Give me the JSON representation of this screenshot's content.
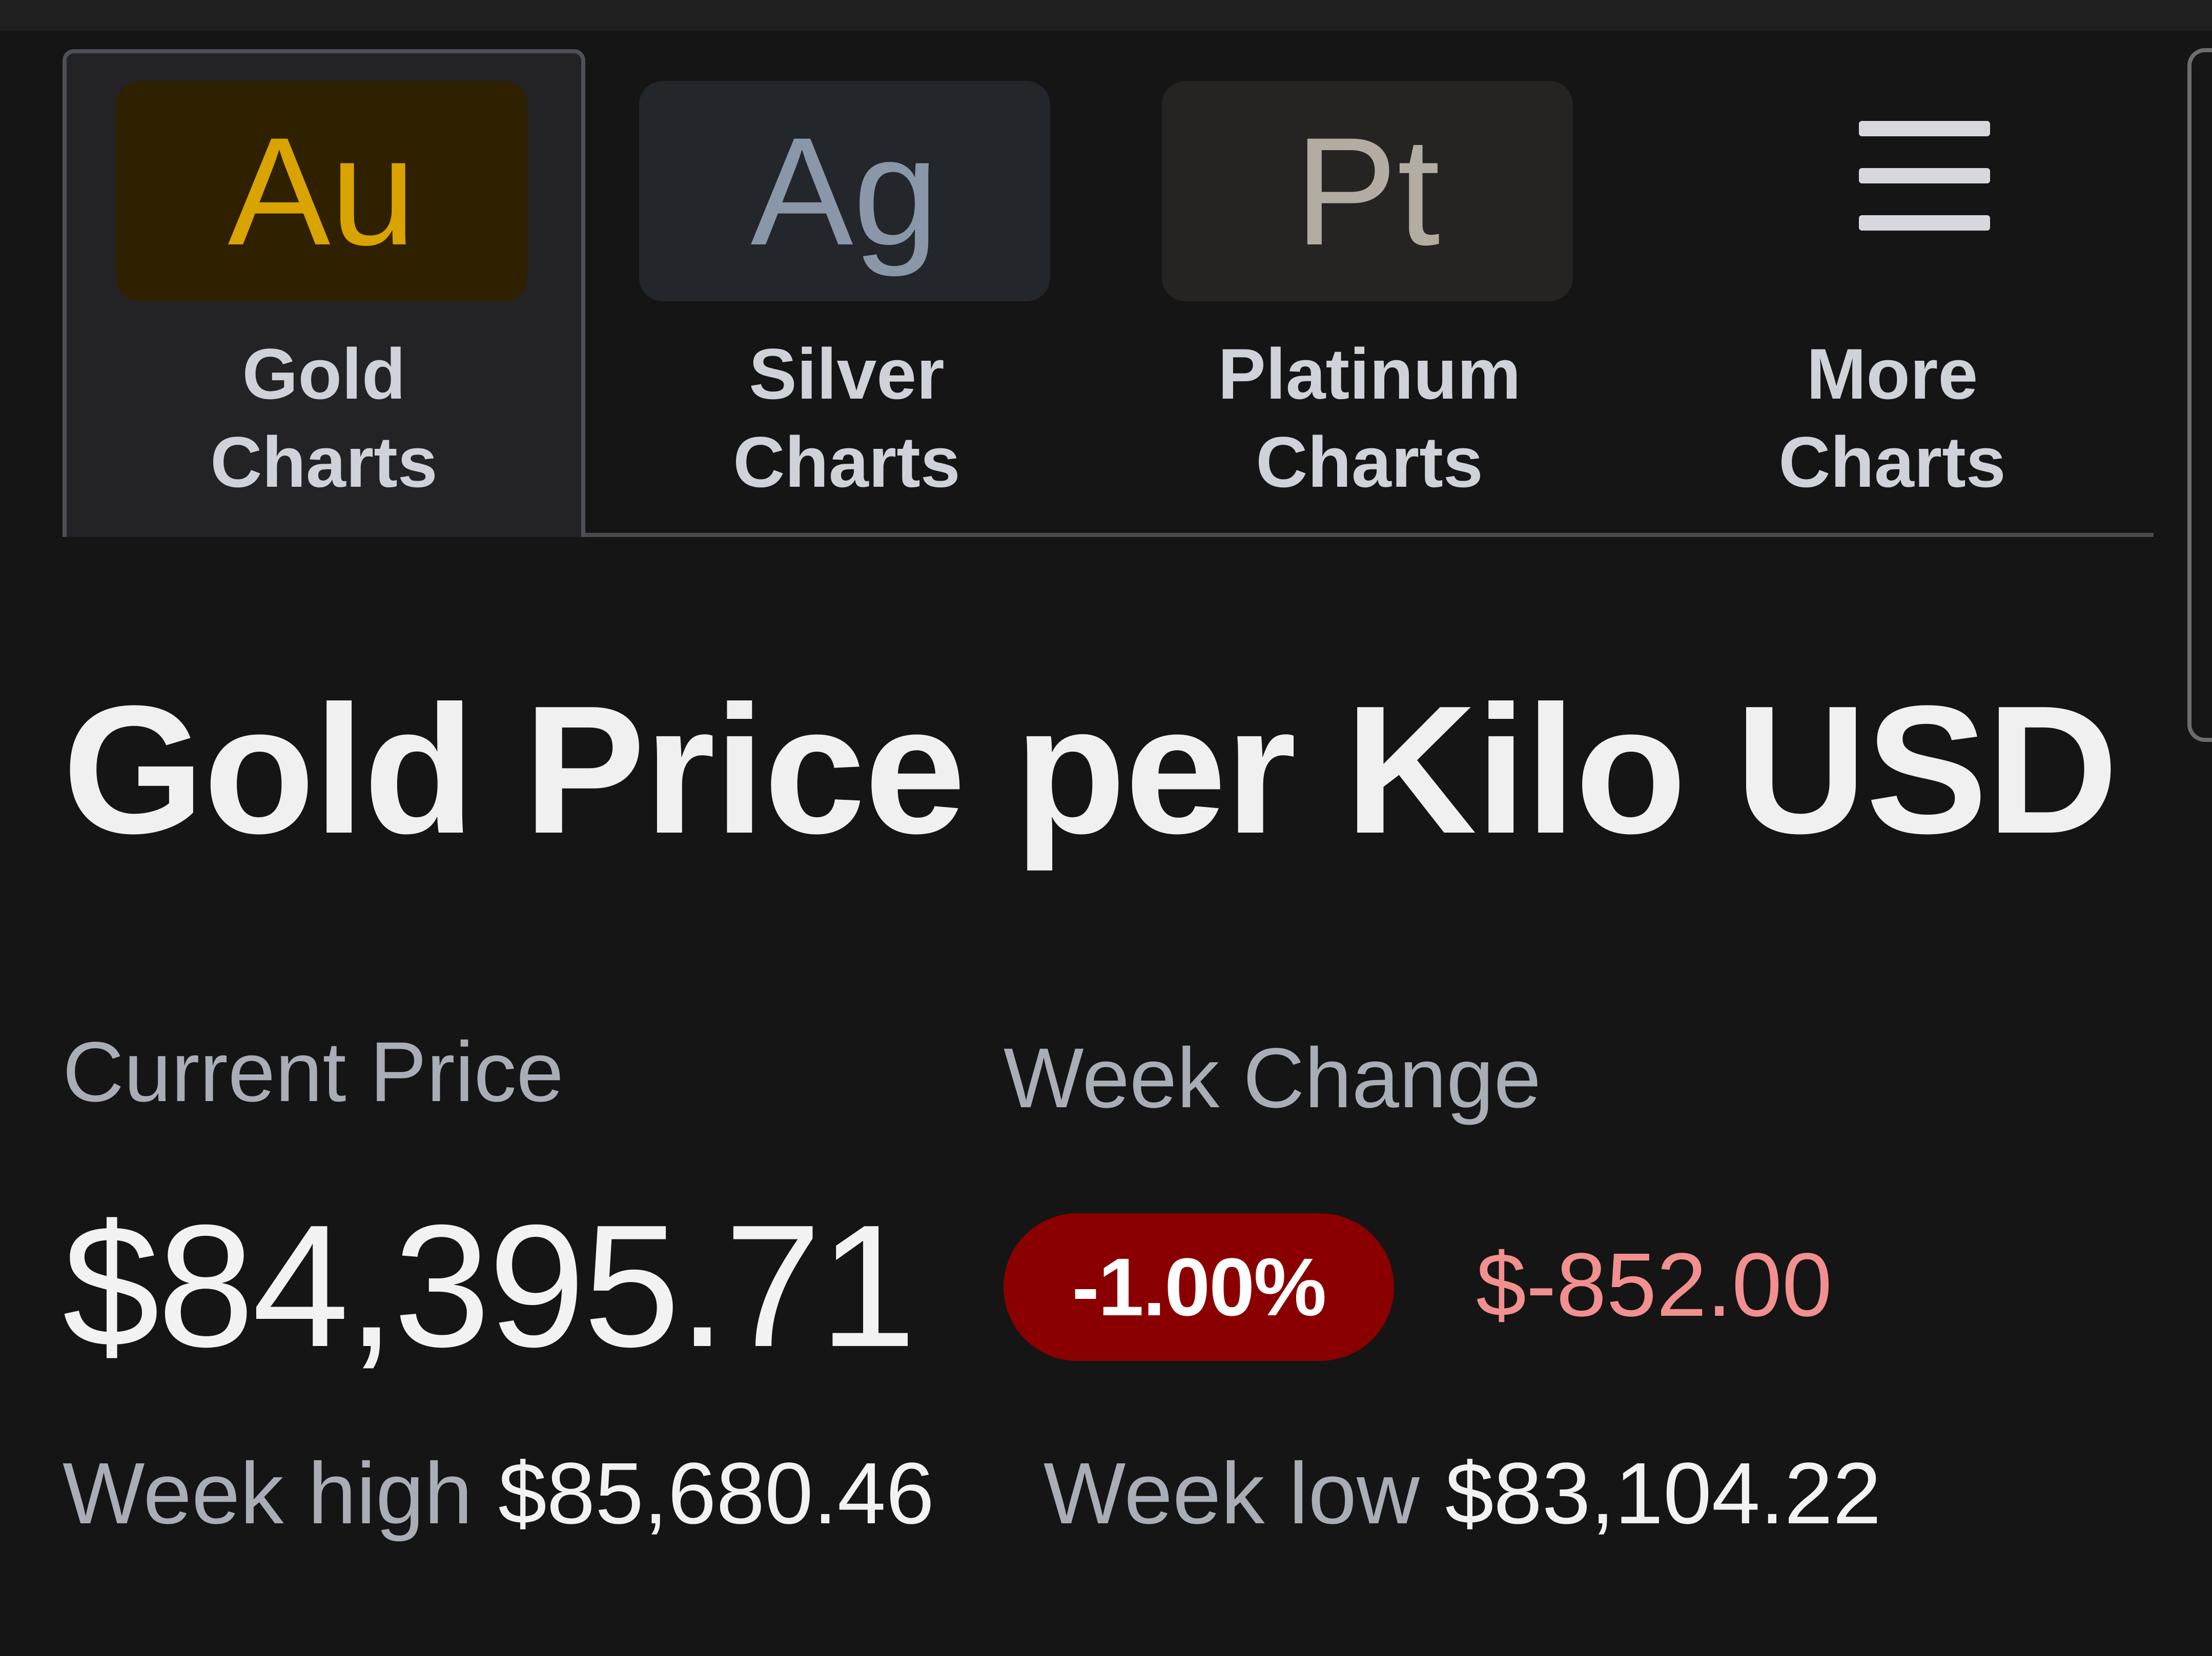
{
  "tabs": [
    {
      "symbol": "Au",
      "line1": "Gold",
      "line2": "Charts",
      "symbol_color": "#d9a300",
      "box_color": "#2f2000",
      "active": true
    },
    {
      "symbol": "Ag",
      "line1": "Silver",
      "line2": "Charts",
      "symbol_color": "#8a97a8",
      "box_color": "#23262b",
      "active": false
    },
    {
      "symbol": "Pt",
      "line1": "Platinum",
      "line2": "Charts",
      "symbol_color": "#b2aca2",
      "box_color": "#252423",
      "active": false
    },
    {
      "icon": "menu-icon",
      "line1": "More",
      "line2": "Charts",
      "active": false
    }
  ],
  "page_title": "Gold Price per Kilo USD",
  "current_price": {
    "label": "Current Price",
    "value": "$84,395.71"
  },
  "week_change": {
    "label": "Week Change",
    "percent": "-1.00%",
    "amount": "$-852.00",
    "badge_color": "#8a0000",
    "amount_color": "#f28f8f"
  },
  "week_high": {
    "label": "Week high",
    "value": "$85,680.46"
  },
  "week_low": {
    "label": "Week low",
    "value": "$83,104.22"
  }
}
